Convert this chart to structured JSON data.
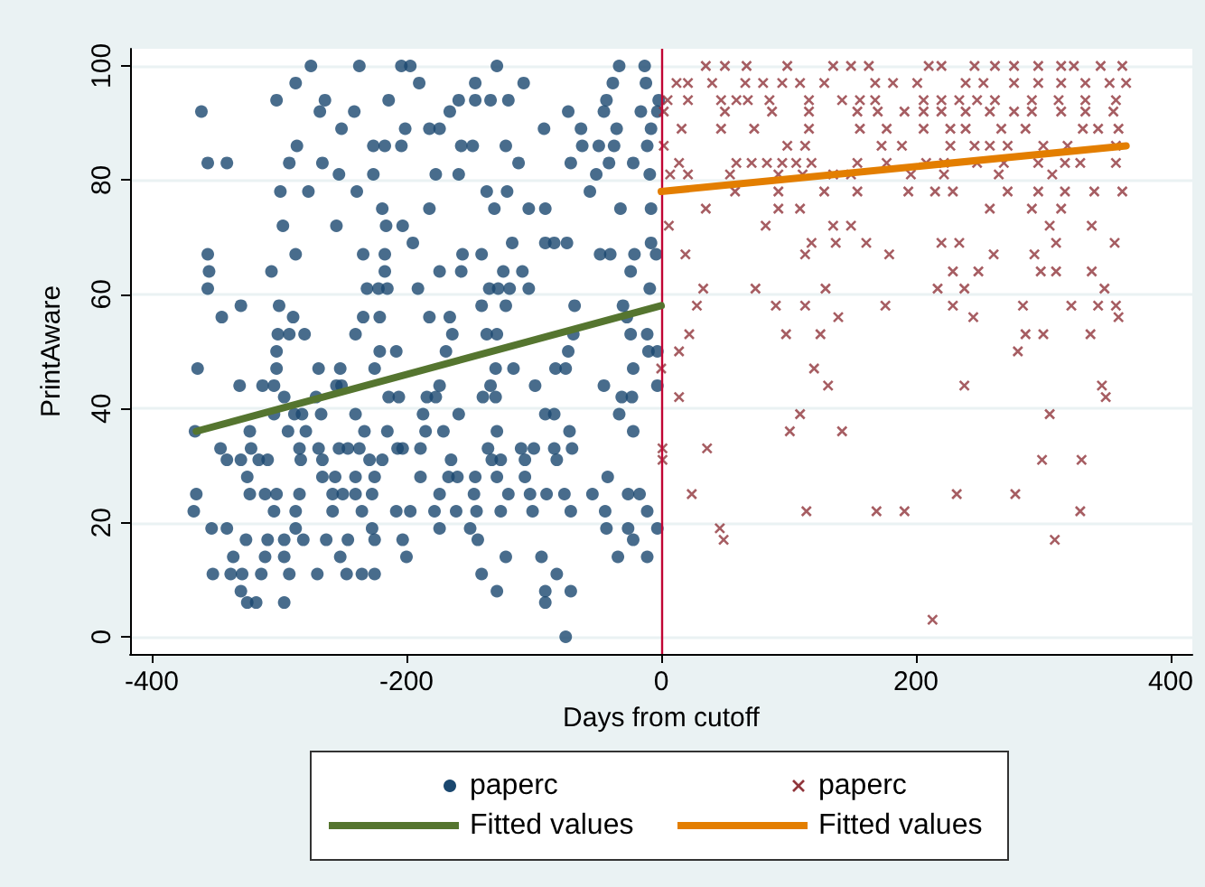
{
  "chart_data": {
    "type": "scatter",
    "xlabel": "Days from cutoff",
    "ylabel": "PrintAware",
    "xlim": [
      -417,
      417
    ],
    "ylim": [
      -3,
      103
    ],
    "xticks": [
      -400,
      -200,
      0,
      200,
      400
    ],
    "yticks": [
      0,
      20,
      40,
      60,
      80,
      100
    ],
    "grid": "y",
    "legend": "bottom",
    "ref_lines": [
      {
        "axis": "x",
        "value": 0,
        "color": "#c10534"
      }
    ],
    "series": [
      {
        "name": "paperc",
        "type": "scatter",
        "marker": "circle",
        "color": "#1a476f",
        "x": [
          -275,
          -237,
          -204,
          -197,
          -129,
          -33,
          -13,
          -287,
          -190,
          -146,
          -108,
          -38,
          -12,
          -302,
          -264,
          -214,
          -159,
          -146,
          -134,
          -120,
          -43,
          -2,
          -361,
          -268,
          -241,
          -166,
          -73,
          -45,
          -16,
          -3,
          -251,
          -201,
          -182,
          -174,
          -92,
          -63,
          -35,
          -8,
          -286,
          -226,
          -217,
          -204,
          -157,
          -148,
          -122,
          -62,
          -49,
          -37,
          -11,
          -356,
          -341,
          -292,
          -266,
          -112,
          -71,
          -41,
          -22,
          -253,
          -226,
          -177,
          -159,
          -51,
          -9,
          -299,
          -277,
          -239,
          -137,
          -121,
          -56,
          -219,
          -182,
          -131,
          -104,
          -91,
          -32,
          -8,
          -297,
          -255,
          -216,
          -203,
          -195,
          -117,
          -91,
          -84,
          -74,
          -8,
          -356,
          -287,
          -234,
          -217,
          -156,
          -141,
          -48,
          -40,
          -21,
          -4,
          -355,
          -306,
          -217,
          -174,
          -157,
          -124,
          -109,
          -24,
          -356,
          -231,
          -222,
          -215,
          -191,
          -135,
          -128,
          -119,
          -104,
          -9,
          -330,
          -300,
          -141,
          -122,
          -68,
          -30,
          -345,
          -289,
          -234,
          -221,
          -182,
          -166,
          -27,
          -301,
          -292,
          -280,
          -240,
          -164,
          -137,
          -129,
          -69,
          -24,
          -11,
          -302,
          -221,
          -208,
          -169,
          -73,
          -10,
          -3,
          -364,
          -302,
          -269,
          -252,
          -225,
          -130,
          -116,
          -83,
          -75,
          -22,
          -331,
          -313,
          -304,
          -255,
          -251,
          -174,
          -134,
          -99,
          -45,
          -3,
          -296,
          -271,
          -214,
          -206,
          -184,
          -177,
          -140,
          -130,
          -31,
          -23,
          -304,
          -288,
          -282,
          -267,
          -240,
          -187,
          -159,
          -91,
          -84,
          -33,
          -366,
          -323,
          -293,
          -279,
          -233,
          -215,
          -185,
          -171,
          -129,
          -72,
          -22,
          -346,
          -322,
          -284,
          -269,
          -253,
          -246,
          -237,
          -207,
          -203,
          -189,
          -136,
          -110,
          -100,
          -84,
          -70,
          -341,
          -330,
          -316,
          -309,
          -283,
          -266,
          -229,
          -219,
          -165,
          -133,
          -126,
          -107,
          -82,
          -325,
          -266,
          -256,
          -240,
          -225,
          -189,
          -167,
          -160,
          -146,
          -129,
          -107,
          -42,
          -365,
          -323,
          -311,
          -302,
          -284,
          -258,
          -250,
          -240,
          -227,
          -174,
          -147,
          -120,
          -103,
          -90,
          -76,
          -54,
          -26,
          -17,
          -367,
          -304,
          -287,
          -258,
          -235,
          -208,
          -197,
          -178,
          -161,
          -145,
          -126,
          -101,
          -71,
          -44,
          -11,
          -353,
          -341,
          -287,
          -227,
          -174,
          -150,
          -43,
          -26,
          -3,
          -326,
          -309,
          -296,
          -281,
          -263,
          -246,
          -225,
          -203,
          -144,
          -22,
          -336,
          -311,
          -296,
          -252,
          -200,
          -122,
          -94,
          -34,
          -11,
          -352,
          -338,
          -329,
          -314,
          -292,
          -270,
          -247,
          -235,
          -225,
          -141,
          -82,
          -330,
          -129,
          -91,
          -71,
          -325,
          -318,
          -296,
          -91,
          -75
        ],
        "values": [
          100,
          100,
          100,
          100,
          100,
          100,
          100,
          97,
          97,
          97,
          97,
          97,
          97,
          94,
          94,
          94,
          94,
          94,
          94,
          94,
          94,
          94,
          92,
          92,
          92,
          92,
          92,
          92,
          92,
          92,
          89,
          89,
          89,
          89,
          89,
          89,
          89,
          89,
          86,
          86,
          86,
          86,
          86,
          86,
          86,
          86,
          86,
          86,
          86,
          83,
          83,
          83,
          83,
          83,
          83,
          83,
          83,
          81,
          81,
          81,
          81,
          81,
          81,
          78,
          78,
          78,
          78,
          78,
          78,
          75,
          75,
          75,
          75,
          75,
          75,
          75,
          72,
          72,
          72,
          72,
          69,
          69,
          69,
          69,
          69,
          69,
          67,
          67,
          67,
          67,
          67,
          67,
          67,
          67,
          67,
          67,
          64,
          64,
          64,
          64,
          64,
          64,
          64,
          64,
          61,
          61,
          61,
          61,
          61,
          61,
          61,
          61,
          61,
          61,
          58,
          58,
          58,
          58,
          58,
          58,
          56,
          56,
          56,
          56,
          56,
          56,
          56,
          53,
          53,
          53,
          53,
          53,
          53,
          53,
          53,
          53,
          53,
          50,
          50,
          50,
          50,
          50,
          50,
          50,
          47,
          47,
          47,
          47,
          47,
          47,
          47,
          47,
          47,
          47,
          44,
          44,
          44,
          44,
          44,
          44,
          44,
          44,
          44,
          44,
          42,
          42,
          42,
          42,
          42,
          42,
          42,
          42,
          42,
          42,
          39,
          39,
          39,
          39,
          39,
          39,
          39,
          39,
          39,
          39,
          36,
          36,
          36,
          36,
          36,
          36,
          36,
          36,
          36,
          36,
          36,
          33,
          33,
          33,
          33,
          33,
          33,
          33,
          33,
          33,
          33,
          33,
          33,
          33,
          33,
          33,
          31,
          31,
          31,
          31,
          31,
          31,
          31,
          31,
          31,
          31,
          31,
          31,
          31,
          28,
          28,
          28,
          28,
          28,
          28,
          28,
          28,
          28,
          28,
          28,
          28,
          25,
          25,
          25,
          25,
          25,
          25,
          25,
          25,
          25,
          25,
          25,
          25,
          25,
          25,
          25,
          25,
          25,
          25,
          22,
          22,
          22,
          22,
          22,
          22,
          22,
          22,
          22,
          22,
          22,
          22,
          22,
          22,
          22,
          19,
          19,
          19,
          19,
          19,
          19,
          19,
          19,
          19,
          17,
          17,
          17,
          17,
          17,
          17,
          17,
          17,
          17,
          17,
          14,
          14,
          14,
          14,
          14,
          14,
          14,
          14,
          14,
          11,
          11,
          11,
          11,
          11,
          11,
          11,
          11,
          11,
          11,
          11,
          8,
          8,
          8,
          8,
          6,
          6,
          6,
          6,
          0
        ]
      },
      {
        "name": "paperc",
        "type": "scatter",
        "marker": "cross",
        "color": "#90353b",
        "x": [
          35,
          50,
          67,
          99,
          135,
          149,
          163,
          210,
          220,
          246,
          262,
          277,
          296,
          314,
          324,
          345,
          362,
          12,
          21,
          40,
          66,
          80,
          95,
          109,
          128,
          168,
          182,
          201,
          239,
          253,
          277,
          296,
          314,
          333,
          352,
          365,
          5,
          21,
          47,
          59,
          68,
          85,
          116,
          142,
          156,
          168,
          206,
          220,
          234,
          248,
          262,
          291,
          312,
          333,
          357,
          2,
          50,
          87,
          116,
          154,
          170,
          191,
          206,
          220,
          239,
          258,
          277,
          291,
          314,
          333,
          355,
          16,
          47,
          73,
          116,
          156,
          177,
          206,
          227,
          239,
          267,
          286,
          331,
          343,
          359,
          2,
          99,
          113,
          173,
          189,
          227,
          246,
          258,
          272,
          300,
          319,
          357,
          14,
          59,
          71,
          83,
          95,
          106,
          118,
          154,
          177,
          208,
          222,
          248,
          269,
          296,
          317,
          329,
          357,
          7,
          21,
          54,
          92,
          111,
          135,
          149,
          196,
          222,
          265,
          307,
          58,
          92,
          128,
          154,
          194,
          215,
          229,
          272,
          296,
          317,
          340,
          362,
          35,
          92,
          109,
          258,
          291,
          314,
          6,
          82,
          135,
          149,
          305,
          338,
          118,
          137,
          161,
          220,
          234,
          310,
          356,
          19,
          113,
          179,
          261,
          293,
          229,
          249,
          298,
          310,
          338,
          33,
          74,
          129,
          217,
          238,
          348,
          28,
          90,
          113,
          176,
          229,
          284,
          322,
          343,
          357,
          139,
          245,
          359,
          22,
          98,
          125,
          286,
          300,
          337,
          14,
          280,
          0,
          120,
          131,
          238,
          346,
          14,
          349,
          109,
          305,
          101,
          142,
          1,
          36,
          1,
          299,
          330,
          24,
          232,
          278,
          114,
          169,
          191,
          329,
          46,
          49,
          309,
          213
        ],
        "values": [
          100,
          100,
          100,
          100,
          100,
          100,
          100,
          100,
          100,
          100,
          100,
          100,
          100,
          100,
          100,
          100,
          100,
          97,
          97,
          97,
          97,
          97,
          97,
          97,
          97,
          97,
          97,
          97,
          97,
          97,
          97,
          97,
          97,
          97,
          97,
          97,
          94,
          94,
          94,
          94,
          94,
          94,
          94,
          94,
          94,
          94,
          94,
          94,
          94,
          94,
          94,
          94,
          94,
          94,
          94,
          92,
          92,
          92,
          92,
          92,
          92,
          92,
          92,
          92,
          92,
          92,
          92,
          92,
          92,
          92,
          92,
          89,
          89,
          89,
          89,
          89,
          89,
          89,
          89,
          89,
          89,
          89,
          89,
          89,
          89,
          86,
          86,
          86,
          86,
          86,
          86,
          86,
          86,
          86,
          86,
          86,
          86,
          83,
          83,
          83,
          83,
          83,
          83,
          83,
          83,
          83,
          83,
          83,
          83,
          83,
          83,
          83,
          83,
          83,
          81,
          81,
          81,
          81,
          81,
          81,
          81,
          81,
          81,
          81,
          81,
          78,
          78,
          78,
          78,
          78,
          78,
          78,
          78,
          78,
          78,
          78,
          78,
          75,
          75,
          75,
          75,
          75,
          75,
          72,
          72,
          72,
          72,
          72,
          72,
          69,
          69,
          69,
          69,
          69,
          69,
          69,
          67,
          67,
          67,
          67,
          67,
          64,
          64,
          64,
          64,
          64,
          61,
          61,
          61,
          61,
          61,
          61,
          58,
          58,
          58,
          58,
          58,
          58,
          58,
          58,
          58,
          56,
          56,
          56,
          53,
          53,
          53,
          53,
          53,
          53,
          50,
          50,
          47,
          47,
          44,
          44,
          44,
          42,
          42,
          39,
          39,
          36,
          36,
          33,
          33,
          31,
          31,
          31,
          25,
          25,
          25,
          22,
          22,
          22,
          22,
          19,
          17,
          17,
          3
        ]
      },
      {
        "name": "Fitted values",
        "type": "line",
        "marker": "none",
        "line_style": "solid",
        "color": "#55752f",
        "x": [
          -365,
          0
        ],
        "values": [
          36,
          58
        ]
      },
      {
        "name": "Fitted values",
        "type": "line",
        "marker": "none",
        "line_style": "solid",
        "color": "#e37e00",
        "x": [
          0,
          365
        ],
        "values": [
          78,
          86
        ]
      }
    ]
  }
}
